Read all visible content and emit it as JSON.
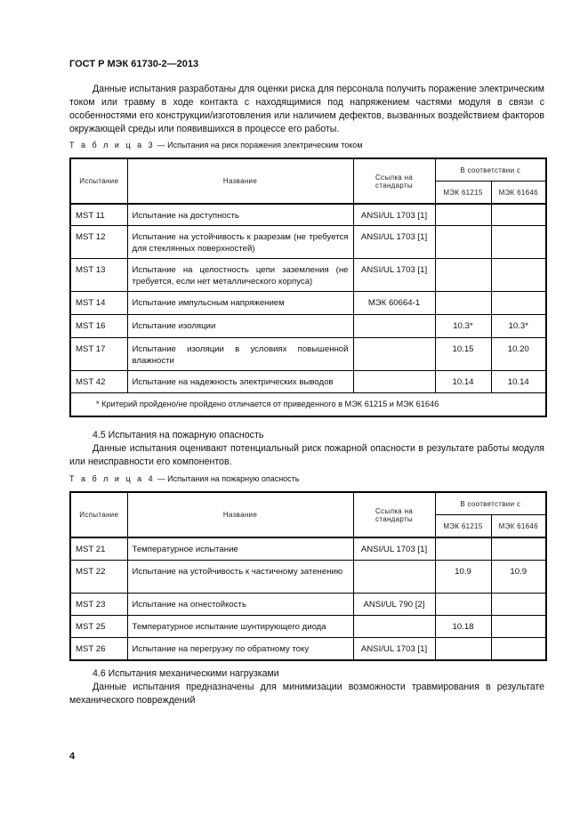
{
  "header": {
    "doc_code": "ГОСТ Р МЭК 61730-2—2013"
  },
  "intro_paragraph": "Данные испытания разработаны для оценки риска для персонала получить поражение электрическим током или травму в ходе контакта с находящимися под напряжением частями модуля в связи с особенностями его конструкции/изготовления или наличием дефектов, вызванных воздействием факторов окружающей среды или появившихся в процессе его работы.",
  "table3": {
    "caption_prefix": "Т а б л и ц а  3",
    "caption_text": " — Испытания на риск поражения электрическим током",
    "headers": {
      "test": "Испытание",
      "name": "Название",
      "ref": "Ссылка на стандарты",
      "according": "В соответствии с",
      "iec1": "МЭК 61215",
      "iec2": "МЭК 61646"
    },
    "rows": [
      {
        "test": "MST 11",
        "name": "Испытание на доступность",
        "ref": "ANSI/UL 1703 [1]",
        "iec1": "",
        "iec2": ""
      },
      {
        "test": "MST 12",
        "name": "Испытание на устойчивость к разрезам (не требуется для стеклянных поверхностей)",
        "ref": "ANSI/UL 1703 [1]",
        "iec1": "",
        "iec2": ""
      },
      {
        "test": "MST 13",
        "name": "Испытание на целостность цепи заземления (не требуется, если нет металлического корпуса)",
        "ref": "ANSI/UL 1703 [1]",
        "iec1": "",
        "iec2": ""
      },
      {
        "test": "MST 14",
        "name": "Испытание импульсным напряжением",
        "ref": "МЭК 60664-1",
        "iec1": "",
        "iec2": ""
      },
      {
        "test": "MST 16",
        "name": "Испытание изоляции",
        "ref": "",
        "iec1": "10.3*",
        "iec2": "10.3*"
      },
      {
        "test": "MST 17",
        "name": "Испытание изоляции в условиях повышенной влажности",
        "ref": "",
        "iec1": "10.15",
        "iec2": "10.20"
      },
      {
        "test": "MST 42",
        "name": "Испытание на надежность электрических выводов",
        "ref": "",
        "iec1": "10.14",
        "iec2": "10.14"
      }
    ],
    "footnote": "* Критерий пройдено/не пройдено отличается от приведенного в МЭК 61215 и МЭК 61646"
  },
  "section45": {
    "title": "4.5 Испытания на пожарную опасность",
    "text": "Данные испытания оценивают потенциальный риск пожарной опасности в результате работы модуля или неисправности его компонентов."
  },
  "table4": {
    "caption_prefix": "Т а б л и ц а  4",
    "caption_text": " — Испытания на пожарную опасность",
    "headers": {
      "test": "Испытание",
      "name": "Название",
      "ref": "Ссылка на стандарты",
      "according": "В соответствии с",
      "iec1": "МЭК 61215",
      "iec2": "МЭК 61646"
    },
    "rows": [
      {
        "test": "MST 21",
        "name": "Температурное испытание",
        "ref": "ANSI/UL 1703 [1]",
        "iec1": "",
        "iec2": ""
      },
      {
        "test": "MST 22",
        "name": "Испытание на устойчивость к частичному затенению",
        "ref": "",
        "iec1": "10.9",
        "iec2": "10.9"
      },
      {
        "test": "MST 23",
        "name": "Испытание на огнестойкость",
        "ref": "ANSI/UL 790 [2]",
        "iec1": "",
        "iec2": ""
      },
      {
        "test": "MST 25",
        "name": "Температурное испытание шунтирующего диода",
        "ref": "",
        "iec1": "10.18",
        "iec2": ""
      },
      {
        "test": "MST 26",
        "name": "Испытание на перегрузку по обратному току",
        "ref": "ANSI/UL 1703 [1]",
        "iec1": "",
        "iec2": ""
      }
    ]
  },
  "section46": {
    "title": "4.6 Испытания механическими нагрузками",
    "text": "Данные испытания предназначены для минимизации возможности травмирования в результате механического повреждений"
  },
  "page_number": "4"
}
